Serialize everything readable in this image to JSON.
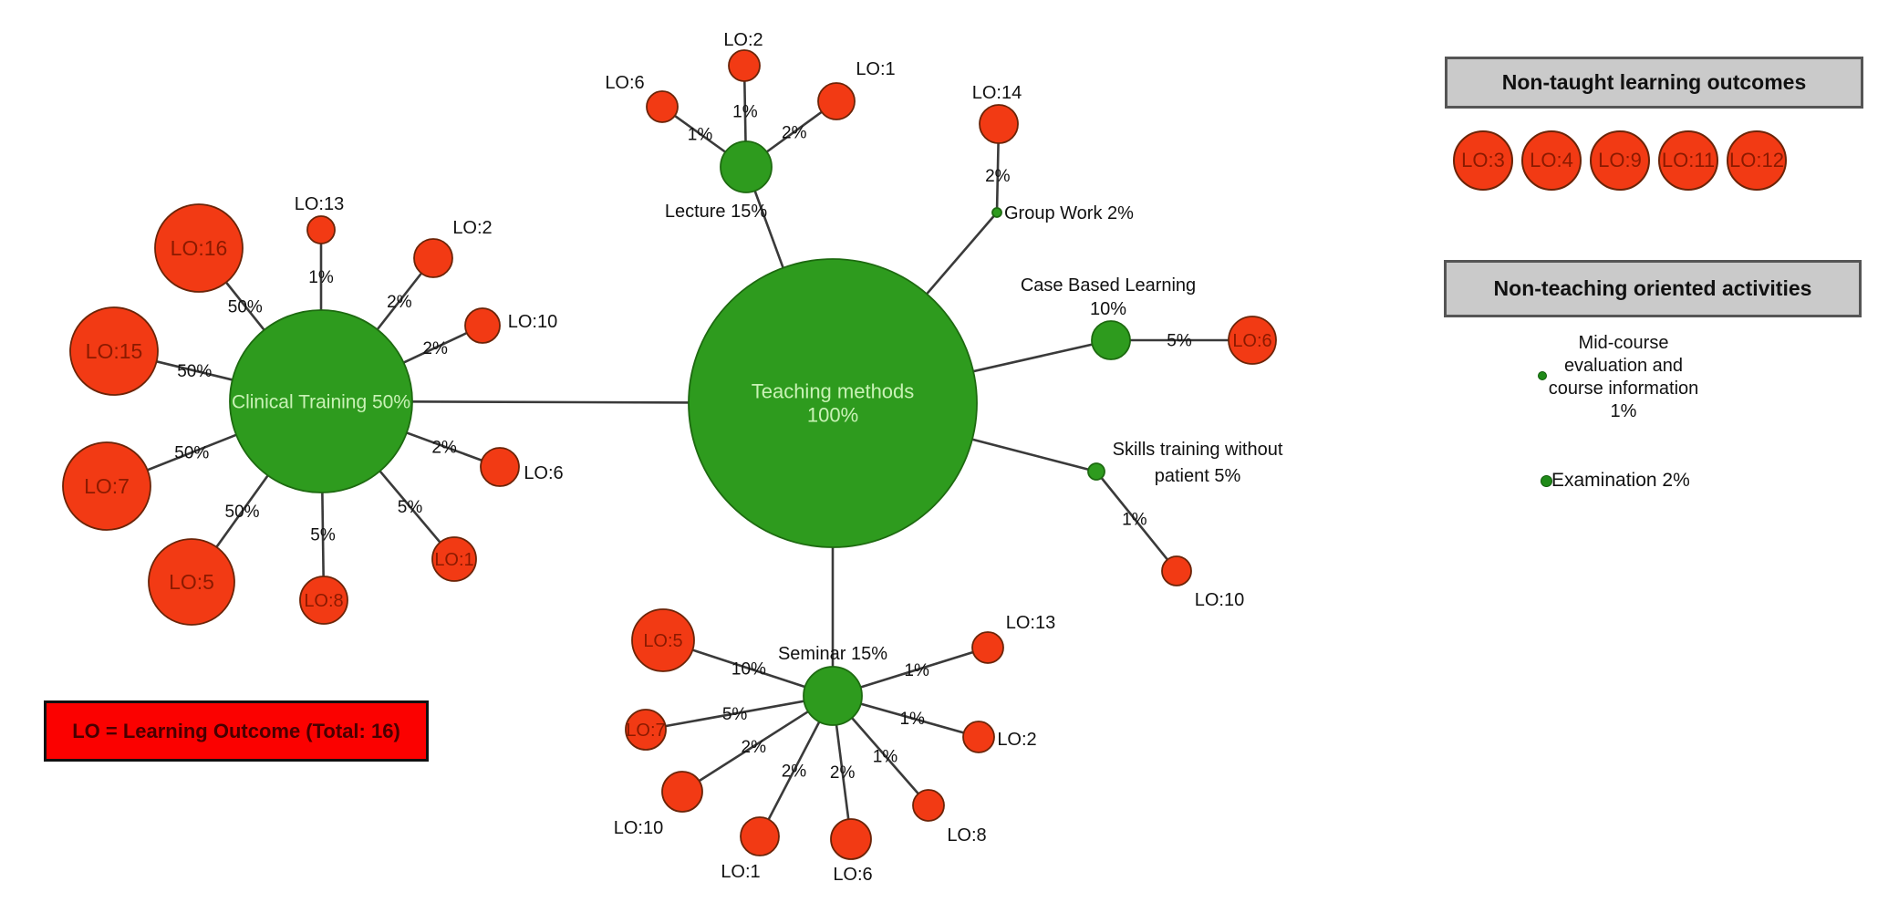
{
  "colors": {
    "hub_fill": "#2e9b1e",
    "hub_stroke": "#1d6a10",
    "hub_text": "#c9f2b6",
    "lo_fill": "#f23a14",
    "lo_stroke": "#6b2408",
    "lo_text": "#8b1a00",
    "edge": "#3a3a3a",
    "label_text": "#111111",
    "legend_bg": "#cacaca",
    "legend_border": "#555555",
    "footnote_bg": "#fb0100",
    "footnote_text": "#480000"
  },
  "footnote": "LO = Learning Outcome (Total: 16)",
  "legend": {
    "non_taught": {
      "header": "Non-taught learning outcomes",
      "items": [
        "LO:3",
        "LO:4",
        "LO:9",
        "LO:11",
        "LO:12"
      ]
    },
    "non_teaching": {
      "header": "Non-teaching oriented activities",
      "items": [
        {
          "label_lines": [
            "Mid-course",
            "evaluation and",
            "course information",
            "1%"
          ]
        },
        {
          "label_lines": [
            "Examination 2%"
          ]
        }
      ]
    }
  },
  "diagram": {
    "root": {
      "id": "teaching",
      "label_lines": [
        "Teaching methods",
        "100%"
      ]
    },
    "clusters": [
      {
        "id": "clinical",
        "label_lines": [
          "Clinical Training 50%"
        ],
        "satellites": [
          {
            "id": "cl-16",
            "lo": "LO:16",
            "pct": "50%"
          },
          {
            "id": "cl-13",
            "lo": "LO:13",
            "pct": "1%"
          },
          {
            "id": "cl-2",
            "lo": "LO:2",
            "pct": "2%"
          },
          {
            "id": "cl-15",
            "lo": "LO:15",
            "pct": "50%"
          },
          {
            "id": "cl-10",
            "lo": "LO:10",
            "pct": "2%"
          },
          {
            "id": "cl-7",
            "lo": "LO:7",
            "pct": "50%"
          },
          {
            "id": "cl-6",
            "lo": "LO:6",
            "pct": "2%"
          },
          {
            "id": "cl-5",
            "lo": "LO:5",
            "pct": "50%"
          },
          {
            "id": "cl-8",
            "lo": "LO:8",
            "pct": "5%"
          },
          {
            "id": "cl-1",
            "lo": "LO:1",
            "pct": "5%"
          }
        ]
      },
      {
        "id": "lecture",
        "label_lines": [
          "Lecture 15%"
        ],
        "satellites": [
          {
            "id": "lec-6",
            "lo": "LO:6",
            "pct": "1%"
          },
          {
            "id": "lec-2",
            "lo": "LO:2",
            "pct": "1%"
          },
          {
            "id": "lec-1",
            "lo": "LO:1",
            "pct": "2%"
          }
        ]
      },
      {
        "id": "groupwork",
        "label_lines": [
          "Group Work 2%"
        ],
        "satellites": [
          {
            "id": "gw-14",
            "lo": "LO:14",
            "pct": "2%"
          }
        ]
      },
      {
        "id": "cbl",
        "label_lines": [
          "Case Based Learning",
          "10%"
        ],
        "satellites": [
          {
            "id": "cbl-6",
            "lo": "LO:6",
            "pct": "5%"
          }
        ]
      },
      {
        "id": "skills",
        "label_lines": [
          "Skills training without",
          "patient 5%"
        ],
        "satellites": [
          {
            "id": "sk-10",
            "lo": "LO:10",
            "pct": "1%"
          }
        ]
      },
      {
        "id": "seminar",
        "label_lines": [
          "Seminar 15%"
        ],
        "satellites": [
          {
            "id": "sem-5",
            "lo": "LO:5",
            "pct": "10%"
          },
          {
            "id": "sem-7",
            "lo": "LO:7",
            "pct": "5%"
          },
          {
            "id": "sem-10",
            "lo": "LO:10",
            "pct": "2%"
          },
          {
            "id": "sem-1",
            "lo": "LO:1",
            "pct": "2%"
          },
          {
            "id": "sem-6",
            "lo": "LO:6",
            "pct": "2%"
          },
          {
            "id": "sem-8",
            "lo": "LO:8",
            "pct": "1%"
          },
          {
            "id": "sem-2",
            "lo": "LO:2",
            "pct": "1%"
          },
          {
            "id": "sem-13",
            "lo": "LO:13",
            "pct": "1%"
          }
        ]
      }
    ]
  }
}
